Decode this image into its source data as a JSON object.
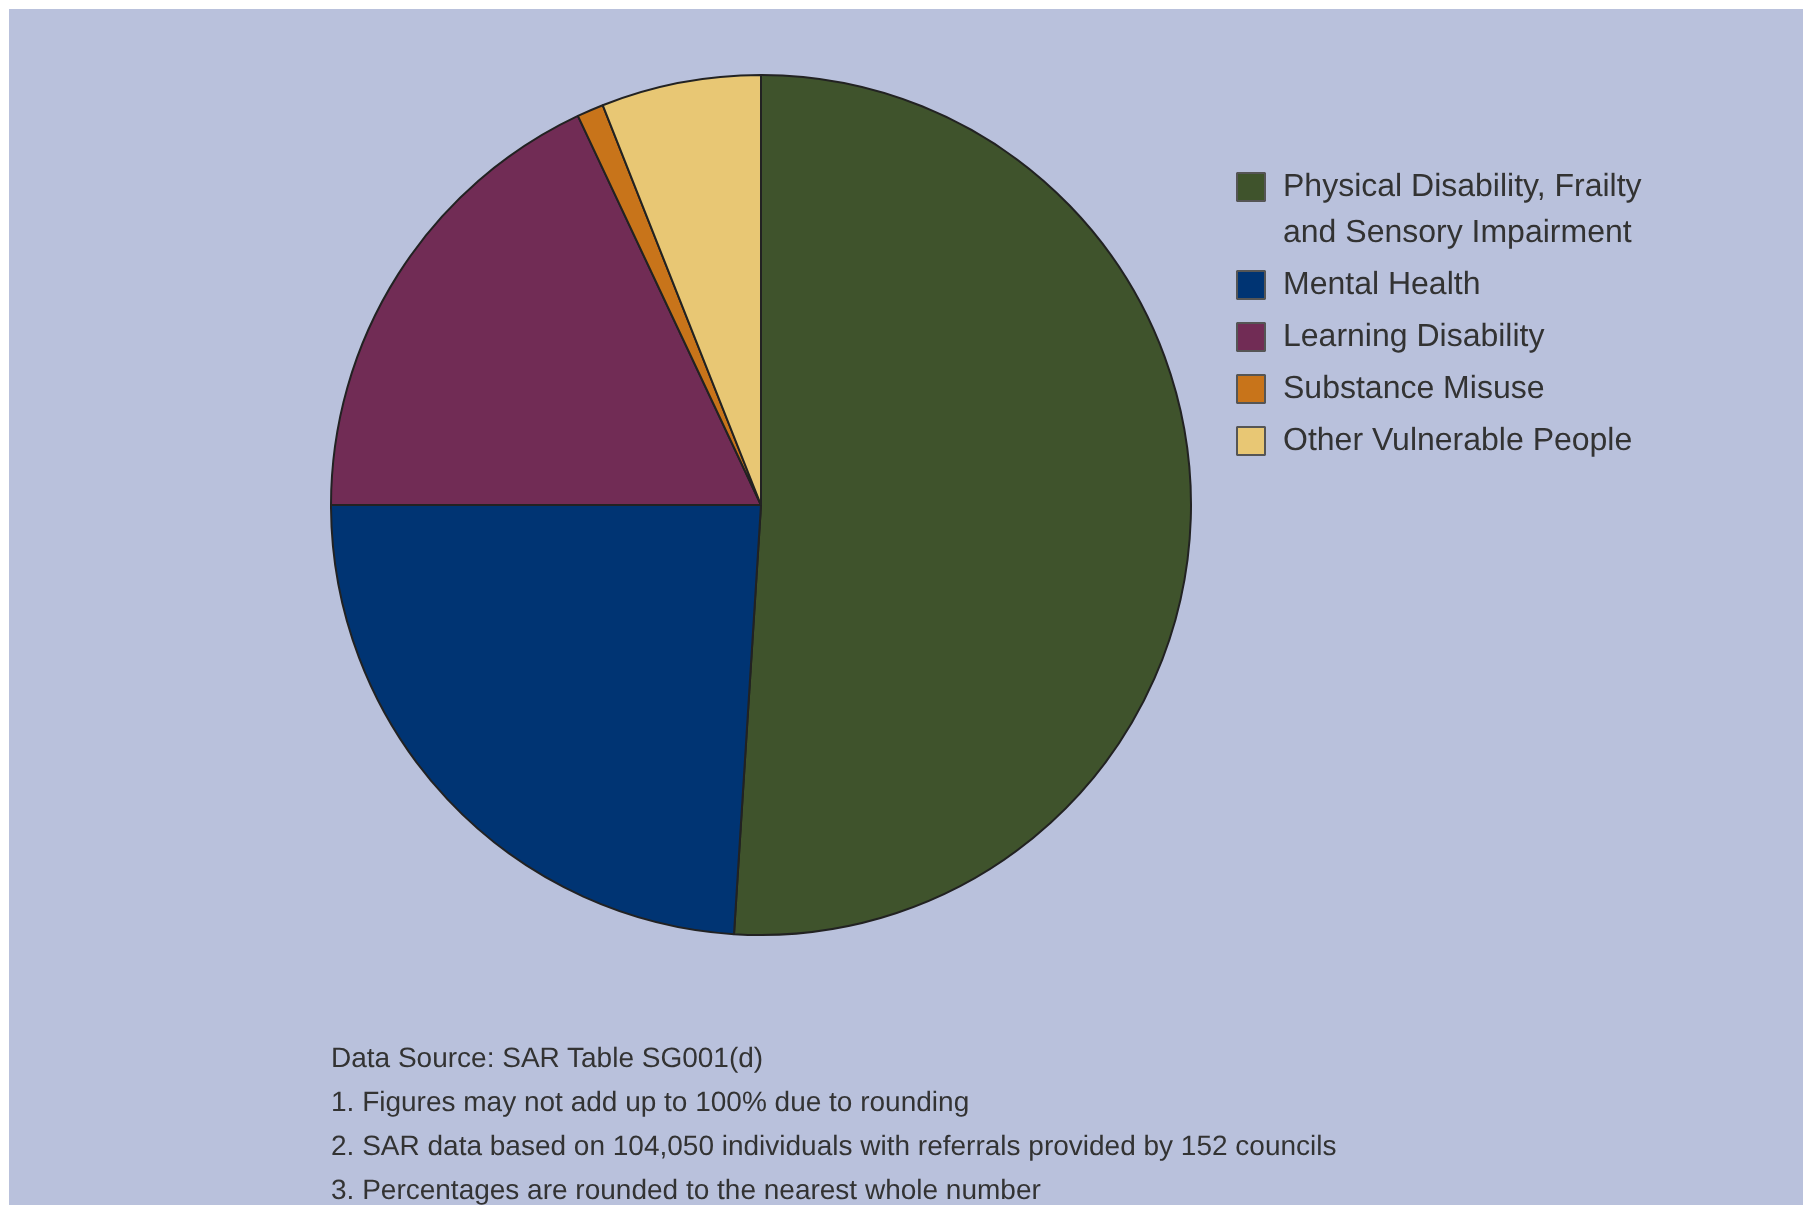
{
  "chart_data": {
    "type": "pie",
    "categories": [
      "Physical Disability, Frailty and Sensory Impairment",
      "Mental Health",
      "Learning Disability",
      "Substance Misuse",
      "Other Vulnerable People"
    ],
    "values": [
      51,
      24,
      18,
      1,
      6
    ],
    "colors": [
      "#3f532c",
      "#003473",
      "#712c55",
      "#c8741a",
      "#e8c774"
    ],
    "legend": "right",
    "annotations": [
      "Data Source: SAR Table SG001(d)",
      "1. Figures may not add up to 100% due to rounding",
      "2. SAR data based on 104,050 individuals with referrals provided by 152 councils",
      "3. Percentages are rounded to the nearest whole number"
    ]
  }
}
